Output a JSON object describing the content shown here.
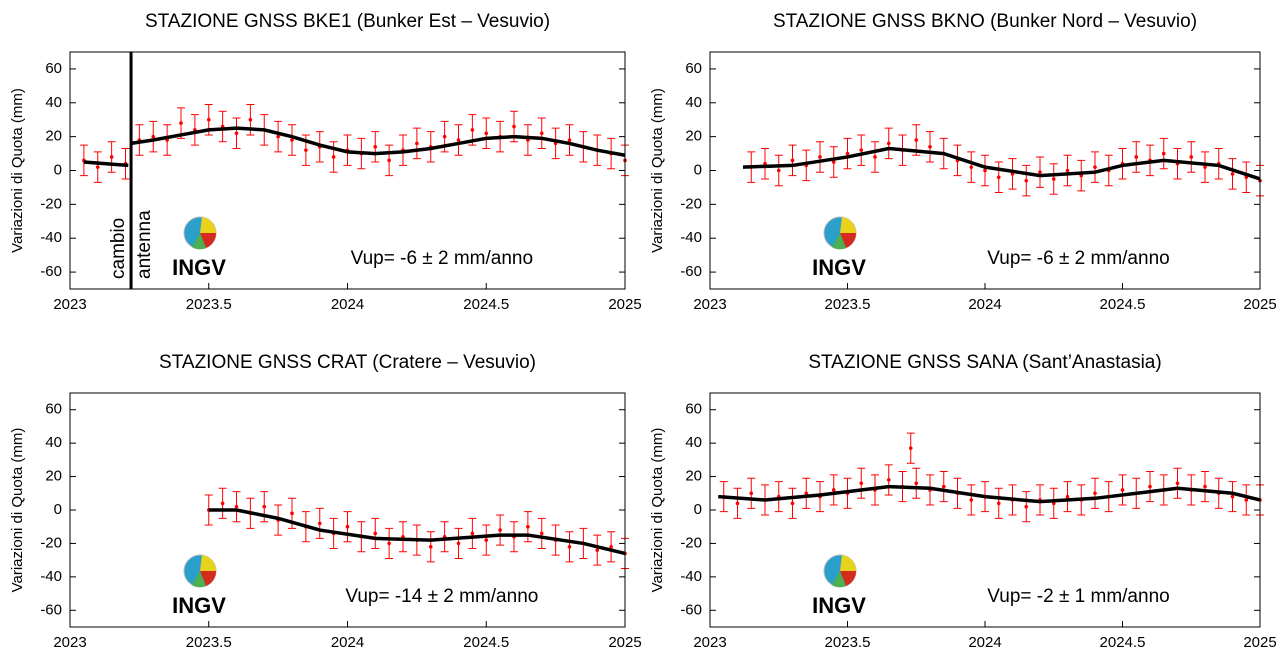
{
  "chart_data": [
    {
      "type": "line",
      "title": "STAZIONE GNSS BKE1 (Bunker Est – Vesuvio)",
      "y_label": "Variazioni di Quota (mm)",
      "annotation": "Vup= -6 ± 2 mm/anno",
      "logo_text": "INGV",
      "vline": {
        "x": 2023.22,
        "labels": [
          "cambio",
          "antenna"
        ]
      },
      "xlim": [
        2023,
        2025
      ],
      "xticks": [
        2023,
        2023.5,
        2024,
        2024.5,
        2025
      ],
      "ylim": [
        -70,
        70
      ],
      "yticks": [
        -60,
        -40,
        -20,
        0,
        20,
        40,
        60
      ],
      "series": [
        {
          "color": "#ff0000",
          "error": 9,
          "x": [
            2023.05,
            2023.1,
            2023.15,
            2023.2,
            2023.25,
            2023.3,
            2023.35,
            2023.4,
            2023.45,
            2023.5,
            2023.55,
            2023.6,
            2023.65,
            2023.7,
            2023.75,
            2023.8,
            2023.85,
            2023.9,
            2023.95,
            2024.0,
            2024.05,
            2024.1,
            2024.15,
            2024.2,
            2024.25,
            2024.3,
            2024.35,
            2024.4,
            2024.45,
            2024.5,
            2024.55,
            2024.6,
            2024.65,
            2024.7,
            2024.75,
            2024.8,
            2024.85,
            2024.9,
            2024.95,
            2025.0
          ],
          "values": [
            6,
            2,
            8,
            4,
            18,
            20,
            18,
            28,
            24,
            30,
            26,
            22,
            30,
            24,
            20,
            18,
            12,
            14,
            8,
            12,
            10,
            14,
            6,
            12,
            16,
            14,
            20,
            18,
            24,
            22,
            20,
            26,
            18,
            22,
            16,
            18,
            14,
            12,
            10,
            6
          ]
        },
        {
          "color": "#000000",
          "x": [
            2023.05,
            2023.13,
            2023.21,
            2023.215,
            2023.22,
            2023.3,
            2023.4,
            2023.5,
            2023.6,
            2023.7,
            2023.8,
            2023.9,
            2024.0,
            2024.1,
            2024.2,
            2024.3,
            2024.4,
            2024.5,
            2024.6,
            2024.7,
            2024.8,
            2024.9,
            2025.0
          ],
          "values": [
            5,
            4,
            3,
            null,
            16,
            18,
            21,
            24,
            25,
            24,
            20,
            15,
            11,
            10,
            11,
            13,
            16,
            19,
            20,
            19,
            16,
            12,
            9
          ]
        }
      ]
    },
    {
      "type": "line",
      "title": "STAZIONE GNSS BKNO (Bunker Nord – Vesuvio)",
      "y_label": "Variazioni di Quota (mm)",
      "annotation": "Vup= -6 ± 2 mm/anno",
      "logo_text": "INGV",
      "xlim": [
        2023,
        2025
      ],
      "xticks": [
        2023,
        2023.5,
        2024,
        2024.5,
        2025
      ],
      "ylim": [
        -70,
        70
      ],
      "yticks": [
        -60,
        -40,
        -20,
        0,
        20,
        40,
        60
      ],
      "series": [
        {
          "color": "#ff0000",
          "error": 9,
          "x": [
            2023.15,
            2023.2,
            2023.25,
            2023.3,
            2023.35,
            2023.4,
            2023.45,
            2023.5,
            2023.55,
            2023.6,
            2023.65,
            2023.7,
            2023.75,
            2023.8,
            2023.85,
            2023.9,
            2023.95,
            2024.0,
            2024.05,
            2024.1,
            2024.15,
            2024.2,
            2024.25,
            2024.3,
            2024.35,
            2024.4,
            2024.45,
            2024.5,
            2024.55,
            2024.6,
            2024.65,
            2024.7,
            2024.75,
            2024.8,
            2024.85,
            2024.9,
            2024.95,
            2025.0
          ],
          "values": [
            2,
            4,
            0,
            6,
            3,
            8,
            5,
            10,
            12,
            8,
            16,
            12,
            18,
            14,
            10,
            6,
            2,
            0,
            -4,
            -2,
            -6,
            -1,
            -5,
            0,
            -3,
            2,
            0,
            4,
            8,
            6,
            10,
            4,
            8,
            2,
            4,
            -2,
            -4,
            -6
          ]
        },
        {
          "color": "#000000",
          "x": [
            2023.12,
            2023.3,
            2023.5,
            2023.65,
            2023.85,
            2024.0,
            2024.2,
            2024.4,
            2024.5,
            2024.65,
            2024.85,
            2025.0
          ],
          "values": [
            2,
            3,
            8,
            13,
            10,
            2,
            -3,
            -1,
            3,
            6,
            3,
            -5
          ]
        }
      ]
    },
    {
      "type": "line",
      "title": "STAZIONE GNSS CRAT (Cratere – Vesuvio)",
      "y_label": "Variazioni di Quota (mm)",
      "annotation": "Vup= -14 ± 2 mm/anno",
      "logo_text": "INGV",
      "xlim": [
        2023,
        2025
      ],
      "xticks": [
        2023,
        2023.5,
        2024,
        2024.5,
        2025
      ],
      "ylim": [
        -70,
        70
      ],
      "yticks": [
        -60,
        -40,
        -20,
        0,
        20,
        40,
        60
      ],
      "series": [
        {
          "color": "#ff0000",
          "error": 9,
          "x": [
            2023.5,
            2023.55,
            2023.6,
            2023.65,
            2023.7,
            2023.75,
            2023.8,
            2023.85,
            2023.9,
            2023.95,
            2024.0,
            2024.05,
            2024.1,
            2024.15,
            2024.2,
            2024.25,
            2024.3,
            2024.35,
            2024.4,
            2024.45,
            2024.5,
            2024.55,
            2024.6,
            2024.65,
            2024.7,
            2024.75,
            2024.8,
            2024.85,
            2024.9,
            2024.95,
            2025.0
          ],
          "values": [
            0,
            4,
            2,
            -2,
            2,
            -6,
            -2,
            -10,
            -8,
            -14,
            -10,
            -16,
            -14,
            -20,
            -16,
            -18,
            -22,
            -16,
            -20,
            -14,
            -18,
            -12,
            -16,
            -10,
            -14,
            -18,
            -22,
            -20,
            -24,
            -22,
            -26
          ]
        },
        {
          "color": "#000000",
          "x": [
            2023.5,
            2023.6,
            2023.75,
            2023.9,
            2024.1,
            2024.3,
            2024.55,
            2024.65,
            2024.85,
            2025.0
          ],
          "values": [
            0,
            0,
            -5,
            -12,
            -17,
            -18,
            -15,
            -15,
            -20,
            -26
          ]
        }
      ]
    },
    {
      "type": "line",
      "title": "STAZIONE GNSS SANA (Sant’Anastasia)",
      "y_label": "Variazioni di Quota (mm)",
      "annotation": "Vup= -2 ± 1 mm/anno",
      "logo_text": "INGV",
      "xlim": [
        2023,
        2025
      ],
      "xticks": [
        2023,
        2023.5,
        2024,
        2024.5,
        2025
      ],
      "ylim": [
        -70,
        70
      ],
      "yticks": [
        -60,
        -40,
        -20,
        0,
        20,
        40,
        60
      ],
      "series": [
        {
          "color": "#ff0000",
          "error": 9,
          "x": [
            2023.05,
            2023.1,
            2023.15,
            2023.2,
            2023.25,
            2023.3,
            2023.35,
            2023.4,
            2023.45,
            2023.5,
            2023.55,
            2023.6,
            2023.65,
            2023.7,
            2023.73,
            2023.75,
            2023.8,
            2023.85,
            2023.9,
            2023.95,
            2024.0,
            2024.05,
            2024.1,
            2024.15,
            2024.2,
            2024.25,
            2024.3,
            2024.35,
            2024.4,
            2024.45,
            2024.5,
            2024.55,
            2024.6,
            2024.65,
            2024.7,
            2024.75,
            2024.8,
            2024.85,
            2024.9,
            2024.95,
            2025.0
          ],
          "values": [
            8,
            4,
            10,
            6,
            8,
            4,
            10,
            8,
            12,
            10,
            16,
            12,
            18,
            14,
            37,
            16,
            12,
            14,
            10,
            6,
            8,
            4,
            6,
            2,
            6,
            4,
            8,
            6,
            10,
            8,
            12,
            10,
            14,
            12,
            16,
            12,
            14,
            10,
            8,
            6,
            6
          ]
        },
        {
          "color": "#000000",
          "x": [
            2023.03,
            2023.2,
            2023.4,
            2023.65,
            2023.8,
            2024.0,
            2024.2,
            2024.4,
            2024.6,
            2024.7,
            2024.9,
            2025.0
          ],
          "values": [
            8,
            6,
            9,
            14,
            13,
            8,
            5,
            7,
            11,
            13,
            10,
            6
          ]
        }
      ]
    }
  ]
}
